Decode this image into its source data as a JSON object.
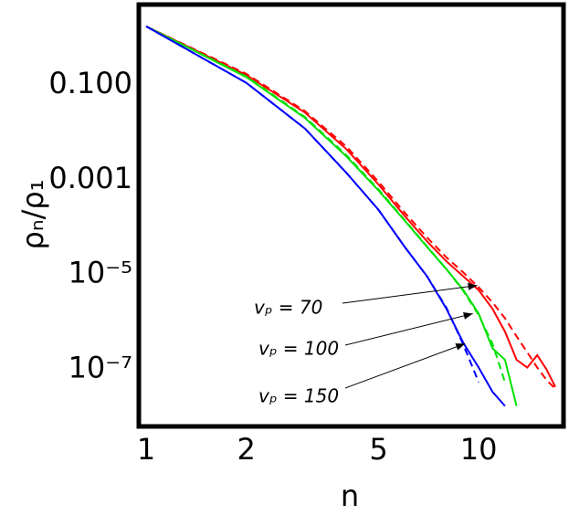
{
  "chart_data": {
    "type": "line",
    "x_label": "n",
    "y_label": "ρₙ/ρ₁",
    "xscale": "log",
    "yscale": "log",
    "xlim": [
      0.95,
      18
    ],
    "ylim": [
      6.3e-09,
      4.9
    ],
    "xticks": [
      1,
      2,
      5,
      10
    ],
    "yticks": [
      {
        "value": 0.1,
        "label": "0.100"
      },
      {
        "value": 0.001,
        "label": "0.001"
      },
      {
        "value": 1e-05,
        "label": "10⁻⁵"
      },
      {
        "value": 1e-07,
        "label": "10⁻⁷"
      }
    ],
    "series": [
      {
        "color": "#ff0000",
        "dashed": false,
        "x": [
          1,
          2,
          3,
          4,
          5,
          6,
          7,
          8,
          9,
          10,
          11,
          12,
          13,
          14,
          15,
          16,
          17
        ],
        "values": [
          1.7,
          0.16,
          0.026,
          0.0044,
          0.00079,
          0.00017,
          5e-05,
          1.9e-05,
          9.1e-06,
          4.7e-06,
          1.9e-06,
          6.3e-07,
          1.6e-07,
          1.1e-07,
          2e-07,
          1e-07,
          4.3e-08
        ]
      },
      {
        "color": "#ff0000",
        "dashed": true,
        "x": [
          1,
          2,
          3,
          4,
          5,
          6,
          7,
          8,
          9,
          10,
          11,
          12,
          13,
          14,
          15,
          16,
          17
        ],
        "values": [
          1.7,
          0.17,
          0.028,
          0.005,
          0.0009,
          0.0002,
          6e-05,
          2.3e-05,
          1.1e-05,
          5.4e-06,
          2.6e-06,
          1.2e-06,
          5e-07,
          2.3e-07,
          1.1e-07,
          6e-08,
          3.9e-08
        ]
      },
      {
        "color": "#00e000",
        "dashed": false,
        "x": [
          1,
          2,
          3,
          4,
          5,
          6,
          7,
          8,
          9,
          10,
          11,
          12,
          13
        ],
        "values": [
          1.7,
          0.145,
          0.02,
          0.0031,
          0.00059,
          0.000135,
          3.8e-05,
          1.3e-05,
          4.7e-06,
          1.5e-06,
          2.8e-07,
          1.6e-07,
          1.7e-08
        ]
      },
      {
        "color": "#00e000",
        "dashed": true,
        "x": [
          1,
          2,
          3,
          4,
          5,
          6,
          7,
          8,
          9,
          10,
          11,
          12
        ],
        "values": [
          1.7,
          0.15,
          0.021,
          0.0033,
          0.00062,
          0.00014,
          3.9e-05,
          1.3e-05,
          4.5e-06,
          1.4e-06,
          3.5e-07,
          5.4e-08
        ]
      },
      {
        "color": "#0000ff",
        "dashed": false,
        "x": [
          1,
          2,
          3,
          4,
          5,
          6,
          7,
          8,
          9,
          10,
          11,
          12
        ],
        "values": [
          1.7,
          0.11,
          0.012,
          0.0014,
          0.00023,
          3.8e-05,
          9.1e-06,
          1.9e-06,
          3.6e-07,
          1.1e-07,
          3.4e-08,
          1.7e-08
        ]
      },
      {
        "color": "#0000ff",
        "dashed": true,
        "x": [
          1,
          2,
          3,
          4,
          5,
          6,
          7,
          8,
          9,
          10
        ],
        "values": [
          1.7,
          0.11,
          0.012,
          0.0014,
          0.00023,
          3.8e-05,
          9.1e-06,
          2e-06,
          3.3e-07,
          5.4e-08
        ]
      }
    ],
    "annotations": [
      {
        "text": "vₚ = 70",
        "x": 9.9,
        "y": 5.9e-06
      },
      {
        "text": "vₚ = 100",
        "x": 9.6,
        "y": 1.5e-06
      },
      {
        "text": "vₚ = 150",
        "x": 9.1,
        "y": 3.5e-07
      }
    ]
  }
}
